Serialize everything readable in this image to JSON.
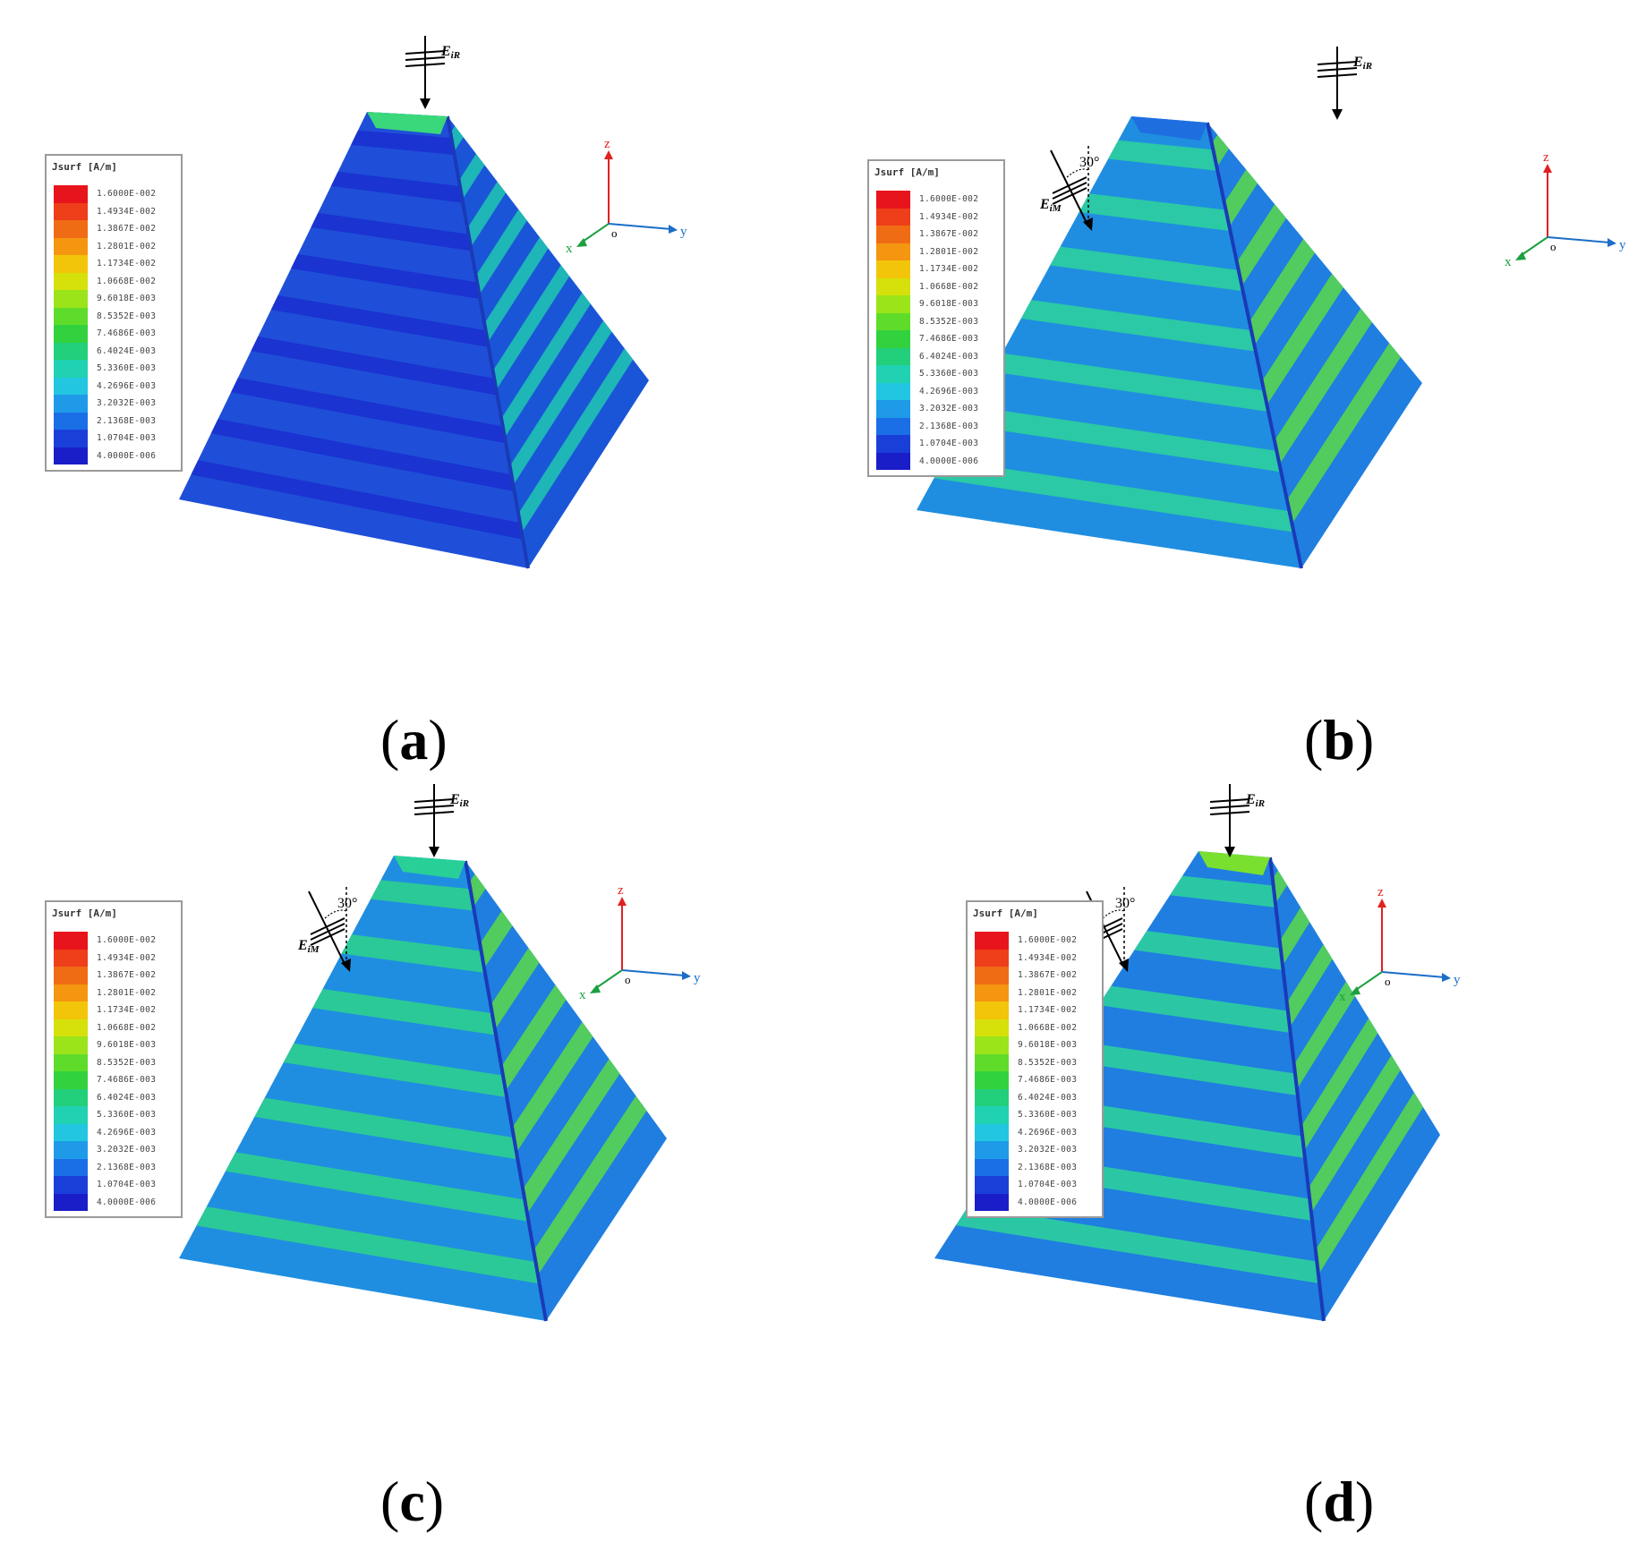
{
  "legend": {
    "title": "Jsurf [A/m]",
    "values": [
      "1.6000E-002",
      "1.4934E-002",
      "1.3867E-002",
      "1.2801E-002",
      "1.1734E-002",
      "1.0668E-002",
      "9.6018E-003",
      "8.5352E-003",
      "7.4686E-003",
      "6.4024E-003",
      "5.3360E-003",
      "4.2696E-003",
      "3.2032E-003",
      "2.1368E-003",
      "1.0704E-003",
      "4.0000E-006"
    ],
    "colors": [
      "#e8141c",
      "#ee3e1a",
      "#f06c14",
      "#f59610",
      "#f2c50a",
      "#d6e00a",
      "#9be41a",
      "#5fdc2a",
      "#32d23e",
      "#22cf7a",
      "#20d2b2",
      "#22c6e0",
      "#1f9ae8",
      "#1b6fe6",
      "#1a3fd8",
      "#1a1ec8"
    ]
  },
  "axes": {
    "x": "x",
    "y": "y",
    "z": "z",
    "origin": "o"
  },
  "waves": {
    "ir_label_main": "E",
    "ir_label_sub": "iR",
    "im_label_main": "E",
    "im_label_sub": "iM",
    "angle": "30°"
  },
  "panels": [
    {
      "id": "a",
      "caption_letter": "a",
      "has_im": false
    },
    {
      "id": "b",
      "caption_letter": "b",
      "has_im": true
    },
    {
      "id": "c",
      "caption_letter": "c",
      "has_im": true
    },
    {
      "id": "d",
      "caption_letter": "d",
      "has_im": true
    }
  ],
  "colors": {
    "axis_x": "#1aa040",
    "axis_y": "#1a6ec8",
    "axis_z": "#e02020"
  }
}
